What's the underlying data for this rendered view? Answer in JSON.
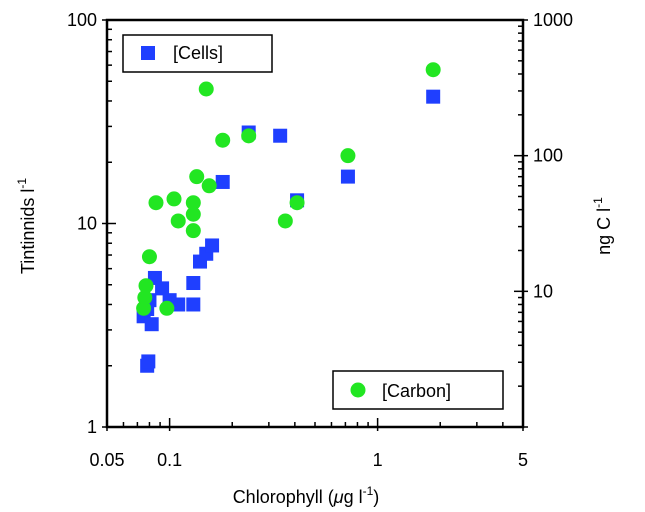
{
  "chart_data": {
    "type": "scatter",
    "x_scale": "log",
    "y_scale": "log",
    "y2_scale": "log",
    "xlim": [
      0.05,
      5
    ],
    "ylim": [
      1,
      100
    ],
    "y2lim": [
      1,
      1000
    ],
    "grid": false,
    "legend_placement": [
      "top-left",
      "bottom-right"
    ],
    "xlabel_prefix": "Chlorophyll (",
    "xlabel_mu": "μ",
    "xlabel_unit": "g l",
    "xlabel_sup": "-1",
    "xlabel_suffix": ")",
    "ylabel": "Tintinnids l",
    "ylabel_sup": "-1",
    "y2label": "ng C l",
    "y2label_sup": "-1",
    "x_ticks": [
      {
        "value": 0.05,
        "label": "0.05"
      },
      {
        "value": 0.1,
        "label": "0.1"
      },
      {
        "value": 1,
        "label": "1"
      },
      {
        "value": 5,
        "label": "5"
      }
    ],
    "y_ticks": [
      {
        "value": 1,
        "label": "1"
      },
      {
        "value": 10,
        "label": "10"
      },
      {
        "value": 100,
        "label": "100"
      }
    ],
    "y2_ticks": [
      {
        "value": 10,
        "label": "10"
      },
      {
        "value": 100,
        "label": "100"
      },
      {
        "value": 1000,
        "label": "1000"
      }
    ],
    "series": [
      {
        "name": "[Cells]",
        "marker": "square",
        "color": "#1f3fff",
        "axis": "left",
        "points": [
          [
            0.075,
            3.5
          ],
          [
            0.078,
            3.8
          ],
          [
            0.08,
            4.2
          ],
          [
            0.078,
            2.0
          ],
          [
            0.079,
            2.1
          ],
          [
            0.082,
            3.2
          ],
          [
            0.085,
            5.4
          ],
          [
            0.092,
            4.8
          ],
          [
            0.1,
            4.2
          ],
          [
            0.11,
            4.0
          ],
          [
            0.13,
            4.0
          ],
          [
            0.13,
            5.1
          ],
          [
            0.14,
            6.5
          ],
          [
            0.15,
            7.1
          ],
          [
            0.16,
            7.8
          ],
          [
            0.18,
            16
          ],
          [
            0.24,
            28
          ],
          [
            0.34,
            27
          ],
          [
            0.41,
            13
          ],
          [
            0.72,
            17
          ],
          [
            1.85,
            42
          ]
        ]
      },
      {
        "name": "[Carbon]",
        "marker": "circle",
        "color": "#22e622",
        "axis": "right",
        "points": [
          [
            0.075,
            7.5
          ],
          [
            0.076,
            9.0
          ],
          [
            0.077,
            11
          ],
          [
            0.08,
            18
          ],
          [
            0.086,
            45
          ],
          [
            0.097,
            7.5
          ],
          [
            0.105,
            48
          ],
          [
            0.11,
            33
          ],
          [
            0.13,
            45
          ],
          [
            0.13,
            37
          ],
          [
            0.13,
            28
          ],
          [
            0.135,
            70
          ],
          [
            0.15,
            310
          ],
          [
            0.155,
            60
          ],
          [
            0.18,
            130
          ],
          [
            0.24,
            140
          ],
          [
            0.36,
            33
          ],
          [
            0.41,
            45
          ],
          [
            0.72,
            100
          ],
          [
            1.85,
            430
          ]
        ]
      }
    ]
  }
}
